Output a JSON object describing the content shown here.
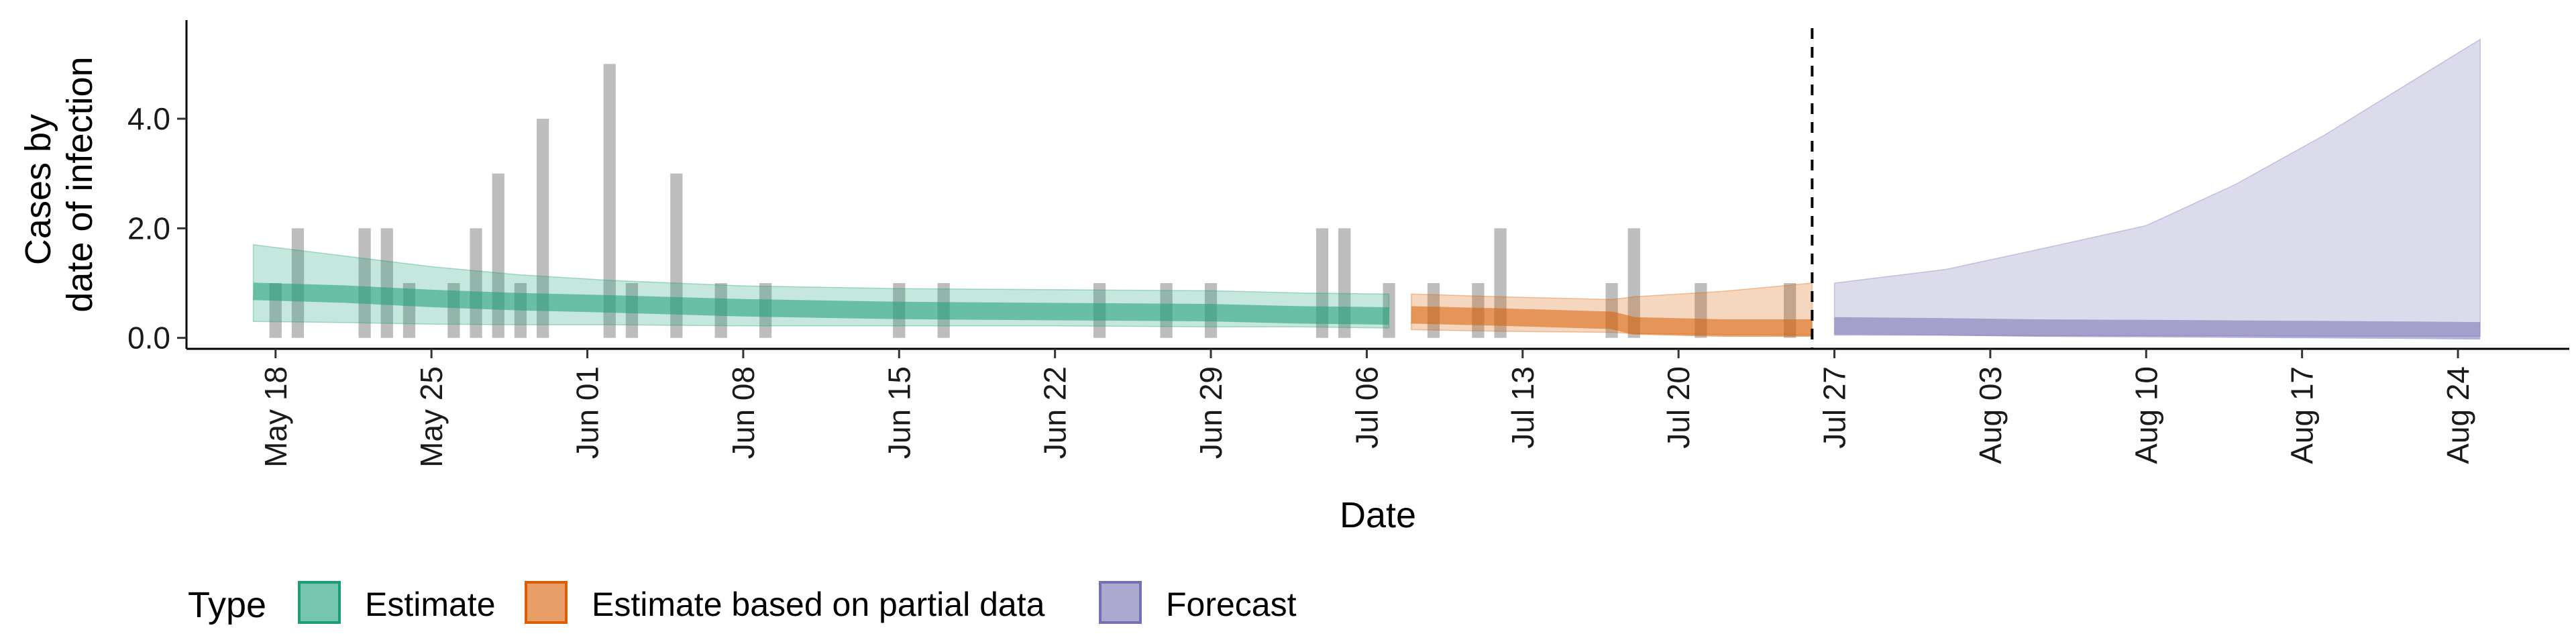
{
  "chart_data": {
    "type": "area",
    "xlabel": "Date",
    "ylabel_lines": [
      "Cases by",
      "date of infection"
    ],
    "ylim": [
      -0.2,
      5.8
    ],
    "yticks": [
      0.0,
      2.0,
      4.0
    ],
    "ytick_labels": [
      "0.0",
      "2.0",
      "4.0"
    ],
    "x_start": "2020-05-14",
    "x_end": "2020-08-29",
    "xticks": [
      {
        "date": "2020-05-18",
        "label": "May 18"
      },
      {
        "date": "2020-05-25",
        "label": "May 25"
      },
      {
        "date": "2020-06-01",
        "label": "Jun 01"
      },
      {
        "date": "2020-06-08",
        "label": "Jun 08"
      },
      {
        "date": "2020-06-15",
        "label": "Jun 15"
      },
      {
        "date": "2020-06-22",
        "label": "Jun 22"
      },
      {
        "date": "2020-06-29",
        "label": "Jun 29"
      },
      {
        "date": "2020-07-06",
        "label": "Jul 06"
      },
      {
        "date": "2020-07-13",
        "label": "Jul 13"
      },
      {
        "date": "2020-07-20",
        "label": "Jul 20"
      },
      {
        "date": "2020-07-27",
        "label": "Jul 27"
      },
      {
        "date": "2020-08-03",
        "label": "Aug 03"
      },
      {
        "date": "2020-08-10",
        "label": "Aug 10"
      },
      {
        "date": "2020-08-17",
        "label": "Aug 17"
      },
      {
        "date": "2020-08-24",
        "label": "Aug 24"
      }
    ],
    "forecast_date": "2020-07-26",
    "observed_cases": [
      {
        "date": "2020-05-18",
        "value": 1
      },
      {
        "date": "2020-05-19",
        "value": 2
      },
      {
        "date": "2020-05-22",
        "value": 2
      },
      {
        "date": "2020-05-23",
        "value": 2
      },
      {
        "date": "2020-05-24",
        "value": 1
      },
      {
        "date": "2020-05-26",
        "value": 1
      },
      {
        "date": "2020-05-27",
        "value": 2
      },
      {
        "date": "2020-05-28",
        "value": 3
      },
      {
        "date": "2020-05-29",
        "value": 1
      },
      {
        "date": "2020-05-30",
        "value": 4
      },
      {
        "date": "2020-06-02",
        "value": 5
      },
      {
        "date": "2020-06-03",
        "value": 1
      },
      {
        "date": "2020-06-05",
        "value": 3
      },
      {
        "date": "2020-06-07",
        "value": 1
      },
      {
        "date": "2020-06-09",
        "value": 1
      },
      {
        "date": "2020-06-15",
        "value": 1
      },
      {
        "date": "2020-06-17",
        "value": 1
      },
      {
        "date": "2020-06-24",
        "value": 1
      },
      {
        "date": "2020-06-27",
        "value": 1
      },
      {
        "date": "2020-06-29",
        "value": 1
      },
      {
        "date": "2020-07-04",
        "value": 2
      },
      {
        "date": "2020-07-05",
        "value": 2
      },
      {
        "date": "2020-07-07",
        "value": 1
      },
      {
        "date": "2020-07-09",
        "value": 1
      },
      {
        "date": "2020-07-11",
        "value": 1
      },
      {
        "date": "2020-07-12",
        "value": 2
      },
      {
        "date": "2020-07-17",
        "value": 1
      },
      {
        "date": "2020-07-18",
        "value": 2
      },
      {
        "date": "2020-07-21",
        "value": 1
      },
      {
        "date": "2020-07-25",
        "value": 1
      }
    ],
    "series": [
      {
        "name": "Estimate",
        "color": "#1b9e77",
        "points": [
          {
            "date": "2020-05-17",
            "median": 0.85,
            "lower": 0.3,
            "upper": 1.7
          },
          {
            "date": "2020-05-21",
            "median": 0.8,
            "lower": 0.28,
            "upper": 1.5
          },
          {
            "date": "2020-05-25",
            "median": 0.72,
            "lower": 0.25,
            "upper": 1.3
          },
          {
            "date": "2020-05-29",
            "median": 0.66,
            "lower": 0.24,
            "upper": 1.15
          },
          {
            "date": "2020-06-02",
            "median": 0.62,
            "lower": 0.24,
            "upper": 1.05
          },
          {
            "date": "2020-06-08",
            "median": 0.55,
            "lower": 0.22,
            "upper": 0.95
          },
          {
            "date": "2020-06-15",
            "median": 0.5,
            "lower": 0.22,
            "upper": 0.9
          },
          {
            "date": "2020-06-22",
            "median": 0.48,
            "lower": 0.22,
            "upper": 0.88
          },
          {
            "date": "2020-06-29",
            "median": 0.46,
            "lower": 0.2,
            "upper": 0.86
          },
          {
            "date": "2020-07-03",
            "median": 0.42,
            "lower": 0.2,
            "upper": 0.82
          },
          {
            "date": "2020-07-07",
            "median": 0.4,
            "lower": 0.18,
            "upper": 0.8
          }
        ]
      },
      {
        "name": "Estimate based on partial data",
        "color": "#d95f02",
        "points": [
          {
            "date": "2020-07-08",
            "median": 0.42,
            "lower": 0.15,
            "upper": 0.8
          },
          {
            "date": "2020-07-12",
            "median": 0.38,
            "lower": 0.12,
            "upper": 0.75
          },
          {
            "date": "2020-07-17",
            "median": 0.32,
            "lower": 0.1,
            "upper": 0.7
          },
          {
            "date": "2020-07-18",
            "median": 0.22,
            "lower": 0.08,
            "upper": 0.75
          },
          {
            "date": "2020-07-22",
            "median": 0.18,
            "lower": 0.06,
            "upper": 0.85
          },
          {
            "date": "2020-07-26",
            "median": 0.18,
            "lower": 0.05,
            "upper": 1.0
          }
        ]
      },
      {
        "name": "Forecast",
        "color": "#7570b3",
        "points": [
          {
            "date": "2020-07-27",
            "median": 0.22,
            "lower": 0.05,
            "upper": 1.0
          },
          {
            "date": "2020-08-01",
            "median": 0.2,
            "lower": 0.05,
            "upper": 1.25
          },
          {
            "date": "2020-08-05",
            "median": 0.18,
            "lower": 0.04,
            "upper": 1.6
          },
          {
            "date": "2020-08-10",
            "median": 0.17,
            "lower": 0.04,
            "upper": 2.05
          },
          {
            "date": "2020-08-14",
            "median": 0.16,
            "lower": 0.04,
            "upper": 2.8
          },
          {
            "date": "2020-08-18",
            "median": 0.15,
            "lower": 0.03,
            "upper": 3.7
          },
          {
            "date": "2020-08-22",
            "median": 0.14,
            "lower": 0.03,
            "upper": 4.7
          },
          {
            "date": "2020-08-25",
            "median": 0.13,
            "lower": 0.03,
            "upper": 5.45
          }
        ]
      }
    ],
    "legend": {
      "title": "Type",
      "position": "bottom",
      "entries": [
        {
          "label": "Estimate",
          "color": "#1b9e77"
        },
        {
          "label": "Estimate based on partial data",
          "color": "#d95f02"
        },
        {
          "label": "Forecast",
          "color": "#7570b3"
        }
      ]
    },
    "grid": false
  }
}
